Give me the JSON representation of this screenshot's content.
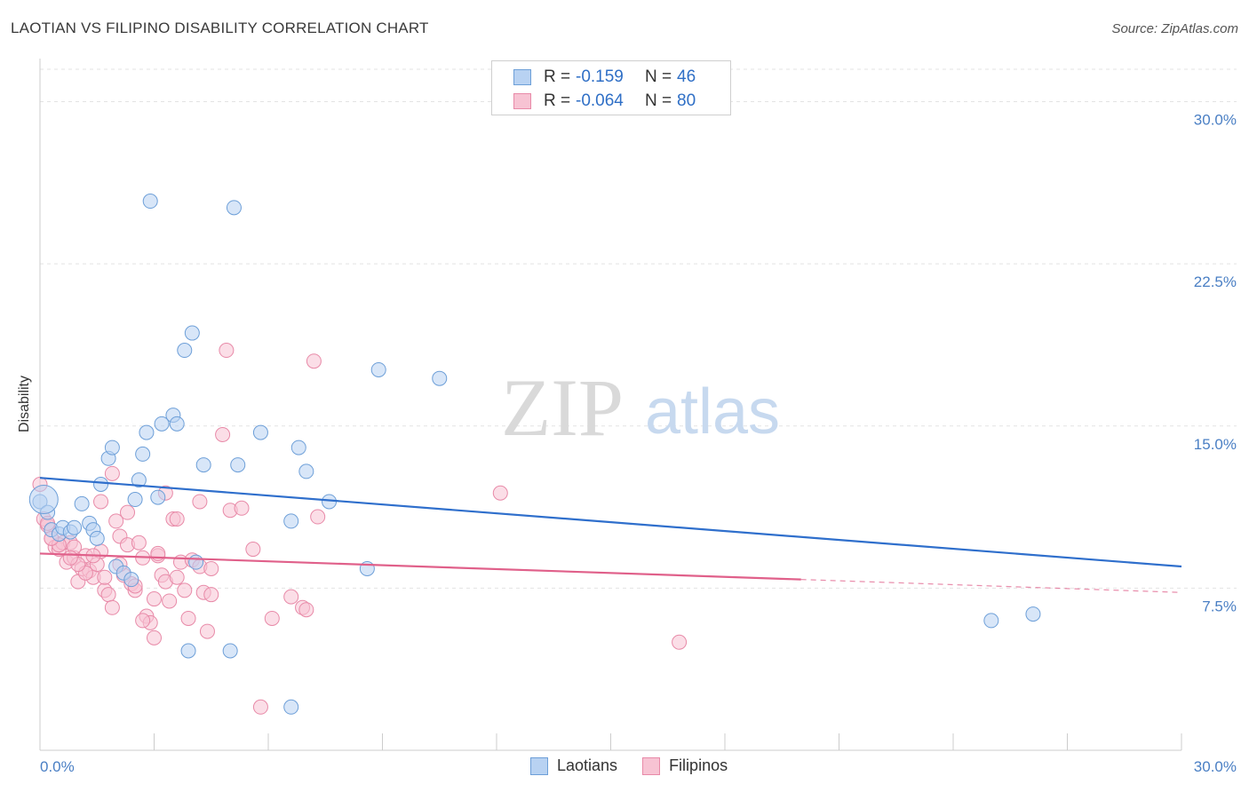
{
  "title": "LAOTIAN VS FILIPINO DISABILITY CORRELATION CHART",
  "source": "Source: ZipAtlas.com",
  "watermark": {
    "zip": "ZIP",
    "atlas": "atlas"
  },
  "legend_top": [
    {
      "r_label": "R =",
      "r_value": "-0.159",
      "n_label": "N =",
      "n_value": "46"
    },
    {
      "r_label": "R =",
      "r_value": "-0.064",
      "n_label": "N =",
      "n_value": "80"
    }
  ],
  "legend_bottom": [
    "Laotians",
    "Filipinos"
  ],
  "colors": {
    "laotian_fill": "#b8d2f2",
    "laotian_stroke": "#6d9fd8",
    "laotian_line": "#2f6fcc",
    "filipino_fill": "#f7c3d3",
    "filipino_stroke": "#e88aa8",
    "filipino_line": "#e0608a",
    "tick_label": "#4a7fc4",
    "grid": "#e3e3e3"
  },
  "chart_data": {
    "type": "scatter",
    "title": "LAOTIAN VS FILIPINO DISABILITY CORRELATION CHART",
    "xlabel": "",
    "ylabel": "Disability",
    "xlim": [
      0,
      30
    ],
    "ylim": [
      0,
      31.5
    ],
    "x_tick_labels": [
      "0.0%",
      "30.0%"
    ],
    "y_ticks": [
      7.5,
      15.0,
      22.5,
      30.0
    ],
    "y_tick_labels": [
      "7.5%",
      "15.0%",
      "22.5%",
      "30.0%"
    ],
    "grid": true,
    "series": [
      {
        "name": "Laotians",
        "points": [
          [
            0.0,
            11.5
          ],
          [
            0.2,
            11.0
          ],
          [
            0.3,
            10.2
          ],
          [
            0.5,
            10.0
          ],
          [
            0.6,
            10.3
          ],
          [
            0.8,
            10.1
          ],
          [
            0.9,
            10.3
          ],
          [
            1.1,
            11.4
          ],
          [
            1.3,
            10.5
          ],
          [
            1.4,
            10.2
          ],
          [
            1.5,
            9.8
          ],
          [
            1.6,
            12.3
          ],
          [
            1.8,
            13.5
          ],
          [
            1.9,
            14.0
          ],
          [
            2.0,
            8.5
          ],
          [
            2.2,
            8.2
          ],
          [
            2.4,
            7.9
          ],
          [
            2.5,
            11.6
          ],
          [
            2.6,
            12.5
          ],
          [
            2.7,
            13.7
          ],
          [
            2.8,
            14.7
          ],
          [
            2.9,
            25.4
          ],
          [
            3.1,
            11.7
          ],
          [
            3.2,
            15.1
          ],
          [
            3.5,
            15.5
          ],
          [
            3.6,
            15.1
          ],
          [
            3.8,
            18.5
          ],
          [
            3.9,
            4.6
          ],
          [
            4.0,
            19.3
          ],
          [
            4.1,
            8.7
          ],
          [
            4.3,
            13.2
          ],
          [
            5.0,
            4.6
          ],
          [
            5.1,
            25.1
          ],
          [
            5.2,
            13.2
          ],
          [
            5.8,
            14.7
          ],
          [
            6.6,
            10.6
          ],
          [
            6.6,
            2.0
          ],
          [
            6.8,
            14.0
          ],
          [
            7.0,
            12.9
          ],
          [
            7.6,
            11.5
          ],
          [
            8.6,
            8.4
          ],
          [
            8.9,
            17.6
          ],
          [
            10.5,
            17.2
          ],
          [
            25.0,
            6.0
          ],
          [
            26.1,
            6.3
          ],
          [
            0.1,
            11.6
          ]
        ],
        "trend": {
          "x": [
            0,
            30
          ],
          "y": [
            12.6,
            8.5
          ]
        }
      },
      {
        "name": "Filipinos",
        "points": [
          [
            0.0,
            12.3
          ],
          [
            0.1,
            10.7
          ],
          [
            0.2,
            10.4
          ],
          [
            0.3,
            9.8
          ],
          [
            0.4,
            9.4
          ],
          [
            0.5,
            9.3
          ],
          [
            0.6,
            9.6
          ],
          [
            0.7,
            8.7
          ],
          [
            0.8,
            9.6
          ],
          [
            0.9,
            8.9
          ],
          [
            1.0,
            7.8
          ],
          [
            1.1,
            8.4
          ],
          [
            1.2,
            9.0
          ],
          [
            1.3,
            8.3
          ],
          [
            1.4,
            8.0
          ],
          [
            1.5,
            8.6
          ],
          [
            1.6,
            9.2
          ],
          [
            1.7,
            7.4
          ],
          [
            1.8,
            7.2
          ],
          [
            1.9,
            6.6
          ],
          [
            2.0,
            10.6
          ],
          [
            2.1,
            9.9
          ],
          [
            2.2,
            8.1
          ],
          [
            2.3,
            9.5
          ],
          [
            2.4,
            7.7
          ],
          [
            2.5,
            7.4
          ],
          [
            2.6,
            9.6
          ],
          [
            2.7,
            8.9
          ],
          [
            2.8,
            6.2
          ],
          [
            2.9,
            5.9
          ],
          [
            3.0,
            7.0
          ],
          [
            3.1,
            9.0
          ],
          [
            3.2,
            8.1
          ],
          [
            3.3,
            7.8
          ],
          [
            3.4,
            6.9
          ],
          [
            3.5,
            10.7
          ],
          [
            3.6,
            8.0
          ],
          [
            3.7,
            8.7
          ],
          [
            3.8,
            7.4
          ],
          [
            3.9,
            6.1
          ],
          [
            4.0,
            8.8
          ],
          [
            4.2,
            8.5
          ],
          [
            4.3,
            7.3
          ],
          [
            4.4,
            5.5
          ],
          [
            4.5,
            8.4
          ],
          [
            4.8,
            14.6
          ],
          [
            4.9,
            18.5
          ],
          [
            5.0,
            11.1
          ],
          [
            5.3,
            11.2
          ],
          [
            5.6,
            9.3
          ],
          [
            5.8,
            2.0
          ],
          [
            6.1,
            6.1
          ],
          [
            6.6,
            7.1
          ],
          [
            6.9,
            6.6
          ],
          [
            7.2,
            18.0
          ],
          [
            7.3,
            10.8
          ],
          [
            1.6,
            11.5
          ],
          [
            1.9,
            12.8
          ],
          [
            2.3,
            11.0
          ],
          [
            3.3,
            11.9
          ],
          [
            4.2,
            11.5
          ],
          [
            0.9,
            9.4
          ],
          [
            1.2,
            8.2
          ],
          [
            2.7,
            6.0
          ],
          [
            3.0,
            5.2
          ],
          [
            4.5,
            7.2
          ],
          [
            7.0,
            6.5
          ],
          [
            12.1,
            11.9
          ],
          [
            16.8,
            5.0
          ],
          [
            0.2,
            10.5
          ],
          [
            0.5,
            9.5
          ],
          [
            1.0,
            8.6
          ],
          [
            1.4,
            9.0
          ],
          [
            2.1,
            8.6
          ],
          [
            2.5,
            7.6
          ],
          [
            3.1,
            9.1
          ],
          [
            3.6,
            10.7
          ],
          [
            0.3,
            9.8
          ],
          [
            0.8,
            8.9
          ],
          [
            1.7,
            8.0
          ]
        ],
        "trend": {
          "x": [
            0,
            20
          ],
          "y": [
            9.1,
            7.9
          ]
        },
        "trend_extension": {
          "x": [
            20,
            30
          ],
          "y": [
            7.9,
            7.3
          ]
        }
      }
    ]
  }
}
